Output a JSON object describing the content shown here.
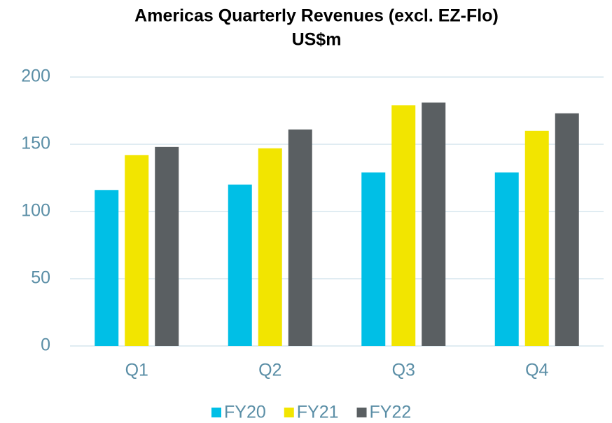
{
  "chart_data": {
    "type": "bar",
    "title": "Americas Quarterly Revenues (excl. EZ-Flo)",
    "subtitle": "US$m",
    "categories": [
      "Q1",
      "Q2",
      "Q3",
      "Q4"
    ],
    "series": [
      {
        "name": "FY20",
        "color": "#00bfe6",
        "values": [
          116,
          120,
          129,
          129
        ]
      },
      {
        "name": "FY21",
        "color": "#f2e500",
        "values": [
          142,
          147,
          179,
          160
        ]
      },
      {
        "name": "FY22",
        "color": "#5a5f62",
        "values": [
          148,
          161,
          181,
          173
        ]
      }
    ],
    "ylim": [
      0,
      200
    ],
    "yticks": [
      0,
      50,
      100,
      150,
      200
    ],
    "grid": true,
    "legend": "bottom"
  }
}
